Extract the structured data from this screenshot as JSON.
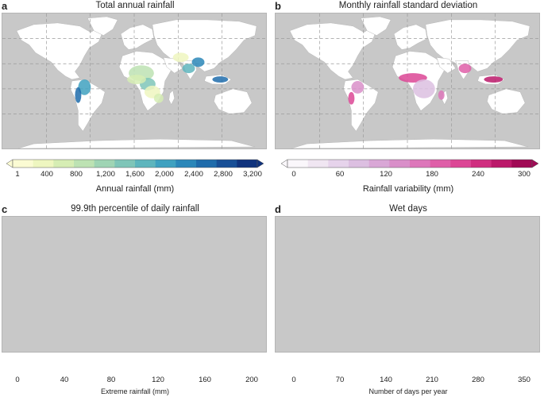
{
  "panels": [
    {
      "id": "a",
      "letter": "a",
      "title": "Total annual rainfall",
      "colorbar": {
        "label": "Annual rainfall (mm)",
        "ticks": [
          "1",
          "400",
          "800",
          "1,200",
          "1,600",
          "2,000",
          "2,400",
          "2,800",
          "3,200"
        ],
        "colors": [
          "#fbfbd3",
          "#eef6c0",
          "#d6edb4",
          "#bde2b3",
          "#9fd4b4",
          "#7fc5b8",
          "#5eb5bd",
          "#3fa1c0",
          "#2b87b9",
          "#1f6cab",
          "#184f96",
          "#10337d"
        ]
      }
    },
    {
      "id": "b",
      "letter": "b",
      "title": "Monthly rainfall standard deviation",
      "colorbar": {
        "label": "Rainfall variability (mm)",
        "ticks": [
          "0",
          "60",
          "120",
          "180",
          "240",
          "300"
        ],
        "colors": [
          "#11e6ef",
          "#1fd4f2",
          "#2fc0f4",
          "#40aaf6",
          "#5196f8",
          "#6784f8",
          "#7b72f6",
          "#9060f4",
          "#a552f1",
          "#b946ee",
          "#cb3ae9",
          "#dc2fe3"
        ]
      }
    },
    {
      "id": "c",
      "letter": "c",
      "title": "99.9th percentile of daily rainfall",
      "colorbar": {
        "label": "Extreme rainfall (mm)",
        "ticks": [
          "0",
          "40",
          "80",
          "120",
          "160",
          "200"
        ],
        "colors": [
          "#eefb2a",
          "#f5de2c",
          "#f9c533",
          "#fbab3c",
          "#f78f45",
          "#ef754f",
          "#e25c5b",
          "#cf4568",
          "#b83276",
          "#9c2182",
          "#7d128e",
          "#5f0598"
        ]
      }
    },
    {
      "id": "d",
      "letter": "d",
      "title": "Wet days",
      "colorbar": {
        "label": "Number of days per year",
        "ticks": [
          "0",
          "70",
          "140",
          "210",
          "280",
          "350"
        ],
        "colors": [
          "#faf7fb",
          "#f0e6f2",
          "#e6d3eb",
          "#dcbfe1",
          "#d9a7d6",
          "#d98fc9",
          "#dd77ba",
          "#df5fa8",
          "#dc4695",
          "#d02e80",
          "#bb196a",
          "#a00a55"
        ]
      }
    }
  ]
}
